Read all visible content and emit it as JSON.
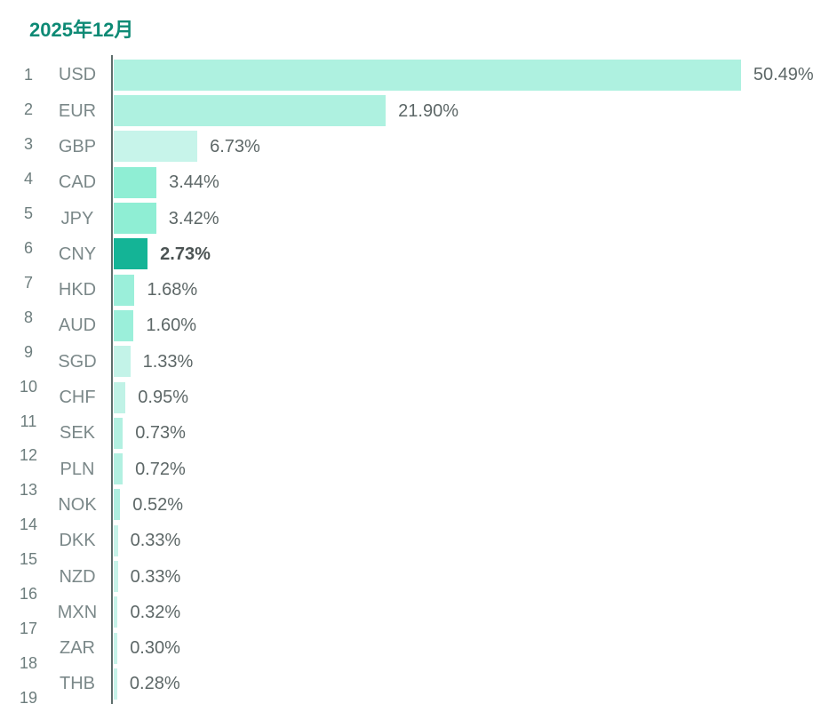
{
  "title": "2025年12月",
  "colors": {
    "title_text": "#0e8a75",
    "axis_line": "#5e6e6c",
    "rank_text": "#6d7d7d",
    "code_text": "#7b8889",
    "value_text": "#5d6767",
    "highlight_value_text": "#4c5454",
    "highlight_bar": "#14b496",
    "default_bar": "#aef1e0"
  },
  "chart_data": {
    "type": "bar",
    "orientation": "horizontal",
    "title": "2025年12月",
    "xlabel": "",
    "ylabel": "",
    "unit": "%",
    "xlim": [
      0,
      52
    ],
    "grid": false,
    "legend": false,
    "highlighted_category": "CNY",
    "categories": [
      "USD",
      "EUR",
      "GBP",
      "CAD",
      "JPY",
      "CNY",
      "HKD",
      "AUD",
      "SGD",
      "CHF",
      "SEK",
      "PLN",
      "NOK",
      "DKK",
      "NZD",
      "MXN",
      "ZAR",
      "THB"
    ],
    "values": [
      50.49,
      21.9,
      6.73,
      3.44,
      3.42,
      2.73,
      1.68,
      1.6,
      1.33,
      0.95,
      0.73,
      0.72,
      0.52,
      0.33,
      0.33,
      0.32,
      0.3,
      0.28
    ],
    "rows": [
      {
        "rank": "1",
        "code": "USD",
        "value": 50.49,
        "label": "50.49%",
        "color": "#aef1e0",
        "bold": false
      },
      {
        "rank": "2",
        "code": "EUR",
        "value": 21.9,
        "label": "21.90%",
        "color": "#aef1e0",
        "bold": false
      },
      {
        "rank": "3",
        "code": "GBP",
        "value": 6.73,
        "label": "6.73%",
        "color": "#c7f4ea",
        "bold": false
      },
      {
        "rank": "4",
        "code": "CAD",
        "value": 3.44,
        "label": "3.44%",
        "color": "#8feed4",
        "bold": false
      },
      {
        "rank": "5",
        "code": "JPY",
        "value": 3.42,
        "label": "3.42%",
        "color": "#8feed4",
        "bold": false
      },
      {
        "rank": "6",
        "code": "CNY",
        "value": 2.73,
        "label": "2.73%",
        "color": "#14b496",
        "bold": true
      },
      {
        "rank": "7",
        "code": "HKD",
        "value": 1.68,
        "label": "1.68%",
        "color": "#9befda",
        "bold": false
      },
      {
        "rank": "8",
        "code": "AUD",
        "value": 1.6,
        "label": "1.60%",
        "color": "#9befda",
        "bold": false
      },
      {
        "rank": "9",
        "code": "SGD",
        "value": 1.33,
        "label": "1.33%",
        "color": "#c3f3e8",
        "bold": false
      },
      {
        "rank": "10",
        "code": "CHF",
        "value": 0.95,
        "label": "0.95%",
        "color": "#c0f2e6",
        "bold": false
      },
      {
        "rank": "11",
        "code": "SEK",
        "value": 0.73,
        "label": "0.73%",
        "color": "#b2f0e1",
        "bold": false
      },
      {
        "rank": "12",
        "code": "PLN",
        "value": 0.72,
        "label": "0.72%",
        "color": "#b2f0e1",
        "bold": false
      },
      {
        "rank": "13",
        "code": "NOK",
        "value": 0.52,
        "label": "0.52%",
        "color": "#aeefe0",
        "bold": false
      },
      {
        "rank": "14",
        "code": "DKK",
        "value": 0.33,
        "label": "0.33%",
        "color": "#c6f3e9",
        "bold": false
      },
      {
        "rank": "15",
        "code": "NZD",
        "value": 0.33,
        "label": "0.33%",
        "color": "#c6f3e9",
        "bold": false
      },
      {
        "rank": "16",
        "code": "MXN",
        "value": 0.32,
        "label": "0.32%",
        "color": "#c6f3e9",
        "bold": false
      },
      {
        "rank": "17",
        "code": "ZAR",
        "value": 0.3,
        "label": "0.30%",
        "color": "#c6f3e9",
        "bold": false
      },
      {
        "rank": "18",
        "code": "THB",
        "value": 0.28,
        "label": "0.28%",
        "color": "#c6f3e9",
        "bold": false
      }
    ],
    "partial_row": {
      "rank": "19",
      "bar_visible": true
    }
  }
}
